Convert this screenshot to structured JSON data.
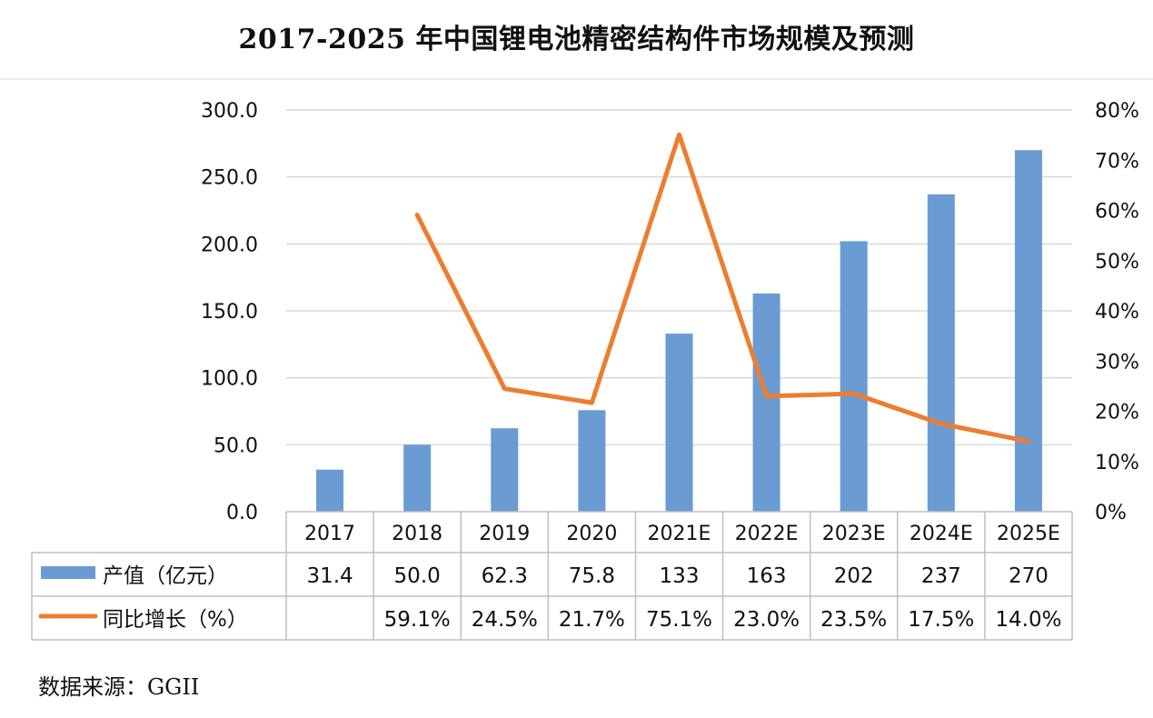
{
  "title": "2017-2025 年中国锂电池精密结构件市场规模及预测",
  "source": "数据来源：GGII",
  "colors": {
    "bar": "#6a9bd3",
    "line": "#ed7d31",
    "grid": "#d9d9d9",
    "table_border": "#bfbfbf"
  },
  "chart_data": {
    "type": "bar",
    "categories": [
      "2017",
      "2018",
      "2019",
      "2020",
      "2021E",
      "2022E",
      "2023E",
      "2024E",
      "2025E"
    ],
    "series": [
      {
        "name": "产值（亿元）",
        "type": "bar",
        "axis": "left",
        "values": [
          31.4,
          50.0,
          62.3,
          75.8,
          133,
          163,
          202,
          237,
          270
        ],
        "labels": [
          "31.4",
          "50.0",
          "62.3",
          "75.8",
          "133",
          "163",
          "202",
          "237",
          "270"
        ]
      },
      {
        "name": "同比增长（%）",
        "type": "line",
        "axis": "right",
        "values": [
          null,
          59.1,
          24.5,
          21.7,
          75.1,
          23.0,
          23.5,
          17.5,
          14.0
        ],
        "labels": [
          "",
          "59.1%",
          "24.5%",
          "21.7%",
          "75.1%",
          "23.0%",
          "23.5%",
          "17.5%",
          "14.0%"
        ]
      }
    ],
    "y_left": {
      "min": 0,
      "max": 300,
      "ticks": [
        "0.0",
        "50.0",
        "100.0",
        "150.0",
        "200.0",
        "250.0",
        "300.0"
      ]
    },
    "y_right": {
      "min": 0,
      "max": 80,
      "ticks": [
        "0%",
        "10%",
        "20%",
        "30%",
        "40%",
        "50%",
        "60%",
        "70%",
        "80%"
      ]
    },
    "grid": true,
    "legend": "data-table"
  }
}
